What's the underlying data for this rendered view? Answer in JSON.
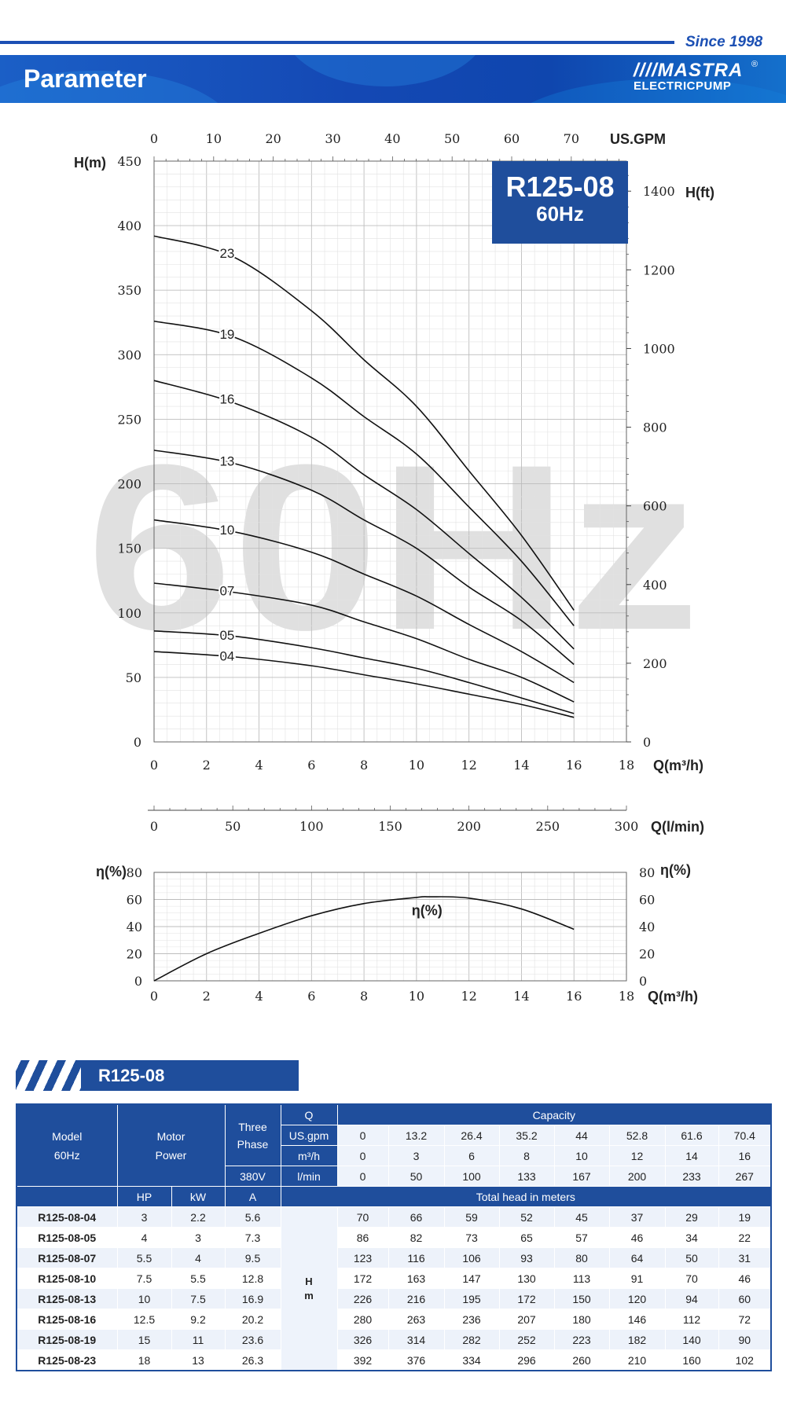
{
  "header": {
    "since": "Since 1998",
    "title": "Parameter",
    "logo_mark": "MASTRA",
    "logo_sub": "ELECTRICPUMP",
    "logo_reg": "®"
  },
  "colors": {
    "brand_blue": "#1f4e9c",
    "banner_blue": "#1448b4",
    "watermark": "#e0e0e0",
    "curve": "#111111"
  },
  "watermark": "60Hz",
  "model_box": {
    "model": "R125-08",
    "freq": "60Hz"
  },
  "chart_data": [
    {
      "type": "line",
      "xlabel": "Q(m³/h)",
      "ylabel": "H(m)",
      "y2label": "H(ft)",
      "x2label": "US.GPM",
      "x3label": "Q(l/min)",
      "xlim": [
        0,
        18
      ],
      "ylim": [
        0,
        450
      ],
      "y2lim_ft": [
        0,
        1476
      ],
      "x2lim_gpm": [
        0,
        79.25
      ],
      "x3lim_lpm": [
        0,
        300
      ],
      "xticks": [
        0,
        2,
        4,
        6,
        8,
        10,
        12,
        14,
        16,
        18
      ],
      "yticks": [
        0,
        50,
        100,
        150,
        200,
        250,
        300,
        350,
        400,
        450
      ],
      "y2ticks": [
        0,
        200,
        400,
        600,
        800,
        1000,
        1200,
        1400
      ],
      "x2ticks": [
        0,
        10,
        20,
        30,
        40,
        50,
        60,
        70
      ],
      "x3ticks": [
        0,
        50,
        100,
        150,
        200,
        250,
        300
      ],
      "grid": true,
      "x": [
        0,
        3,
        6,
        8,
        10,
        12,
        14,
        16
      ],
      "series": [
        {
          "name": "23",
          "values": [
            392,
            376,
            334,
            296,
            260,
            210,
            160,
            102
          ]
        },
        {
          "name": "19",
          "values": [
            326,
            314,
            282,
            252,
            223,
            182,
            140,
            90
          ]
        },
        {
          "name": "16",
          "values": [
            280,
            263,
            236,
            207,
            180,
            146,
            112,
            72
          ]
        },
        {
          "name": "13",
          "values": [
            226,
            216,
            195,
            172,
            150,
            120,
            94,
            60
          ]
        },
        {
          "name": "10",
          "values": [
            172,
            163,
            147,
            130,
            113,
            91,
            70,
            46
          ]
        },
        {
          "name": "07",
          "values": [
            123,
            116,
            106,
            93,
            80,
            64,
            50,
            31
          ]
        },
        {
          "name": "05",
          "values": [
            86,
            82,
            73,
            65,
            57,
            46,
            34,
            22
          ]
        },
        {
          "name": "04",
          "values": [
            70,
            66,
            59,
            52,
            45,
            37,
            29,
            19
          ]
        }
      ]
    },
    {
      "type": "line",
      "xlabel": "Q(m³/h)",
      "ylabel": "η(%)",
      "y2label": "η(%)",
      "xlim": [
        0,
        18
      ],
      "ylim": [
        0,
        80
      ],
      "xticks": [
        0,
        2,
        4,
        6,
        8,
        10,
        12,
        14,
        16,
        18
      ],
      "yticks": [
        0,
        20,
        40,
        60,
        80
      ],
      "grid": true,
      "series": [
        {
          "name": "η(%)",
          "x": [
            0,
            2,
            4,
            6,
            8,
            10,
            10.5,
            12,
            14,
            16
          ],
          "values": [
            0,
            20,
            35,
            48,
            57,
            61.5,
            62,
            61,
            53,
            38
          ]
        }
      ]
    }
  ],
  "section_title": "R125-08",
  "table": {
    "model_label": "Model",
    "model_freq": "60Hz",
    "motor_label": "Motor",
    "power_label": "Power",
    "three_label": "Three",
    "phase_label": "Phase",
    "voltage": "380V",
    "q_label": "Q",
    "capacity_label": "Capacity",
    "flow_rows": [
      {
        "unit": "US.gpm",
        "values": [
          "0",
          "13.2",
          "26.4",
          "35.2",
          "44",
          "52.8",
          "61.6",
          "70.4"
        ]
      },
      {
        "unit": "m³/h",
        "values": [
          "0",
          "3",
          "6",
          "8",
          "10",
          "12",
          "14",
          "16"
        ]
      },
      {
        "unit": "l/min",
        "values": [
          "0",
          "50",
          "100",
          "133",
          "167",
          "200",
          "233",
          "267"
        ]
      }
    ],
    "hp_label": "HP",
    "kw_label": "kW",
    "a_label": "A",
    "total_head_label": "Total head in meters",
    "h_label": "H",
    "m_label": "m",
    "rows": [
      {
        "model": "R125-08-04",
        "hp": "3",
        "kw": "2.2",
        "a": "5.6",
        "head": [
          "70",
          "66",
          "59",
          "52",
          "45",
          "37",
          "29",
          "19"
        ]
      },
      {
        "model": "R125-08-05",
        "hp": "4",
        "kw": "3",
        "a": "7.3",
        "head": [
          "86",
          "82",
          "73",
          "65",
          "57",
          "46",
          "34",
          "22"
        ]
      },
      {
        "model": "R125-08-07",
        "hp": "5.5",
        "kw": "4",
        "a": "9.5",
        "head": [
          "123",
          "116",
          "106",
          "93",
          "80",
          "64",
          "50",
          "31"
        ]
      },
      {
        "model": "R125-08-10",
        "hp": "7.5",
        "kw": "5.5",
        "a": "12.8",
        "head": [
          "172",
          "163",
          "147",
          "130",
          "113",
          "91",
          "70",
          "46"
        ]
      },
      {
        "model": "R125-08-13",
        "hp": "10",
        "kw": "7.5",
        "a": "16.9",
        "head": [
          "226",
          "216",
          "195",
          "172",
          "150",
          "120",
          "94",
          "60"
        ]
      },
      {
        "model": "R125-08-16",
        "hp": "12.5",
        "kw": "9.2",
        "a": "20.2",
        "head": [
          "280",
          "263",
          "236",
          "207",
          "180",
          "146",
          "112",
          "72"
        ]
      },
      {
        "model": "R125-08-19",
        "hp": "15",
        "kw": "11",
        "a": "23.6",
        "head": [
          "326",
          "314",
          "282",
          "252",
          "223",
          "182",
          "140",
          "90"
        ]
      },
      {
        "model": "R125-08-23",
        "hp": "18",
        "kw": "13",
        "a": "26.3",
        "head": [
          "392",
          "376",
          "334",
          "296",
          "260",
          "210",
          "160",
          "102"
        ]
      }
    ]
  }
}
